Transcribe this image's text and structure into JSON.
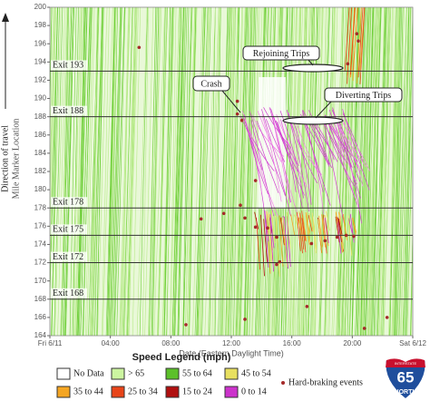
{
  "chart_data": {
    "type": "scatter",
    "x_label": "Date (Eastern Daylight Time)",
    "y_label": "Mile Marker Location",
    "y_label_secondary": "Direction of travel",
    "xlim": [
      0,
      24
    ],
    "xticks": [
      {
        "value": 0,
        "label": "Fri 6/11"
      },
      {
        "value": 4,
        "label": "04:00"
      },
      {
        "value": 8,
        "label": "08:00"
      },
      {
        "value": 12,
        "label": "12:00"
      },
      {
        "value": 16,
        "label": "16:00"
      },
      {
        "value": 20,
        "label": "20:00"
      },
      {
        "value": 24,
        "label": "Sat 6/12"
      }
    ],
    "ylim": [
      164,
      200
    ],
    "yticks": [
      164,
      166,
      168,
      170,
      172,
      174,
      176,
      178,
      180,
      182,
      184,
      186,
      188,
      190,
      192,
      194,
      196,
      198,
      200
    ],
    "reference_lines": [
      {
        "label": "Exit 193",
        "value": 193
      },
      {
        "label": "Exit 188",
        "value": 188
      },
      {
        "label": "Exit 178",
        "value": 178
      },
      {
        "label": "Exit 175",
        "value": 175
      },
      {
        "label": "Exit 172",
        "value": 172
      },
      {
        "label": "Exit 168",
        "value": 168
      }
    ],
    "annotations": [
      {
        "text": "Crash"
      },
      {
        "text": "Rejoining Trips"
      },
      {
        "text": "Diverting Trips"
      }
    ],
    "series": [
      {
        "name": "Hard-braking events",
        "color": "#a52a2a",
        "x": [
          5.9,
          12.4,
          12.7,
          11.5,
          12.6,
          12.9,
          13.6,
          14.4,
          15.0,
          15.2,
          15.0,
          17.3,
          18.2,
          19.0,
          19.6,
          20.1,
          19.7,
          20.4,
          20.3,
          10.0,
          13.6,
          12.9,
          17.0,
          20.8,
          9.0,
          22.3,
          12.4
        ],
        "values": [
          195.6,
          189.7,
          187.6,
          177.4,
          178.3,
          176.9,
          175.9,
          175.8,
          174.8,
          172.1,
          171.8,
          174.1,
          174.4,
          174.8,
          175.0,
          174.9,
          193.8,
          196.3,
          197.1,
          176.8,
          181.0,
          165.8,
          167.2,
          164.8,
          165.2,
          166.0,
          188.3
        ]
      }
    ],
    "legend": {
      "title": "Speed Legend (mph)",
      "items": [
        {
          "label": "No Data",
          "color": "#ffffff"
        },
        {
          "label": "> 65",
          "color": "#ccf5a0"
        },
        {
          "label": "55 to 64",
          "color": "#5cc02a"
        },
        {
          "label": "45 to 54",
          "color": "#e8e060"
        },
        {
          "label": "35 to 44",
          "color": "#f5a623"
        },
        {
          "label": "25 to 34",
          "color": "#e8451a"
        },
        {
          "label": "15 to 24",
          "color": "#b01010"
        },
        {
          "label": "0 to 14",
          "color": "#cc33cc"
        }
      ]
    },
    "sign": {
      "top": "INTERSTATE",
      "number": "65",
      "bottom": "NORTH"
    }
  }
}
